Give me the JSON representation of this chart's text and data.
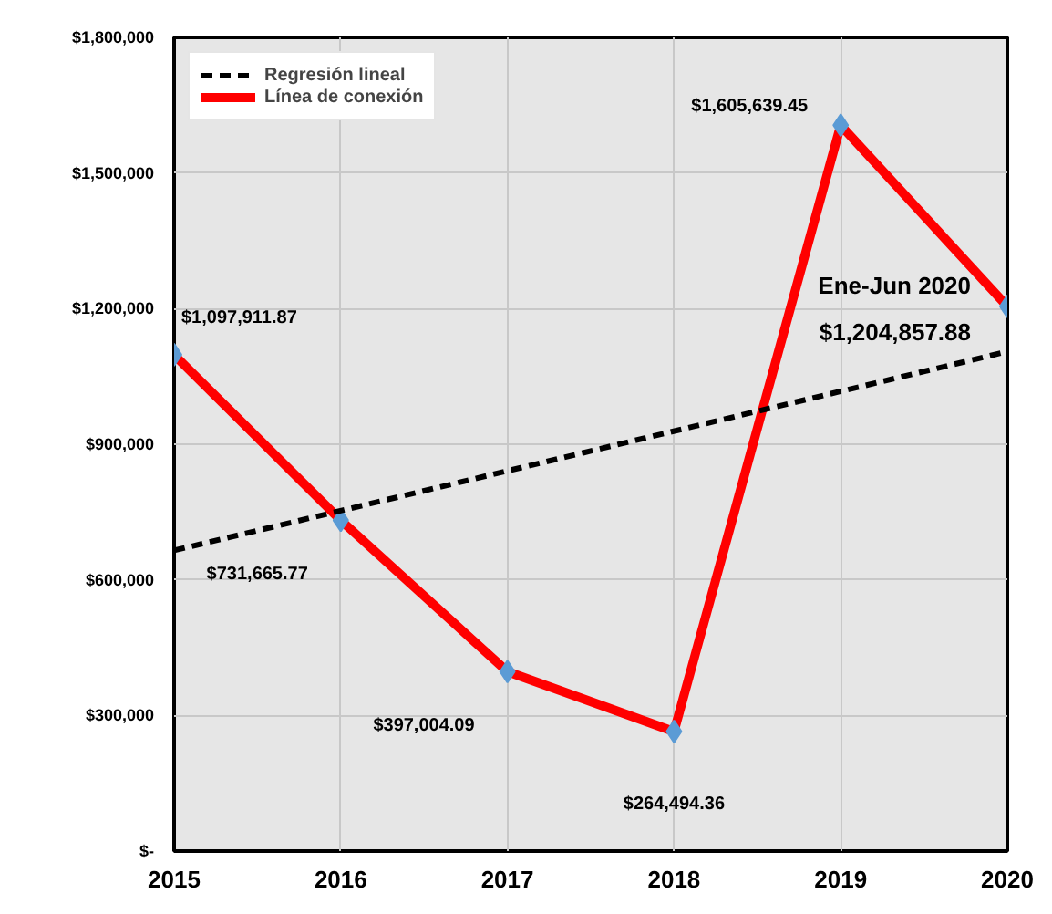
{
  "chart_data": {
    "type": "line",
    "x": [
      2015,
      2016,
      2017,
      2018,
      2019,
      2020
    ],
    "series": [
      {
        "name": "Línea de conexión",
        "color": "#ff0000",
        "values": [
          1097911.87,
          731665.77,
          397004.09,
          264494.36,
          1605639.45,
          1204857.88
        ],
        "marker": "none",
        "line_style": "solid"
      },
      {
        "type": "scatter",
        "color": "#5b9bd5",
        "marker": "diamond",
        "values": [
          1097911.87,
          731665.77,
          397004.09,
          264494.36,
          1605639.45,
          1204857.88
        ],
        "value_labels": [
          "$1,097,911.87",
          "$731,665.77",
          "$397,004.09",
          "$264,494.36",
          "$1,605,639.45",
          "$1,204,857.88"
        ]
      },
      {
        "name": "Regresión lineal",
        "color": "#000000",
        "x": [
          2015,
          2020
        ],
        "values": [
          665000,
          1105000
        ],
        "marker": "none",
        "line_style": "dashed"
      }
    ],
    "annotations": [
      {
        "text": "Ene-Jun 2020",
        "x": 2020,
        "y": 1204857.88
      }
    ],
    "xlim": [
      2015,
      2020
    ],
    "xticks": [
      2015,
      2016,
      2017,
      2018,
      2019,
      2020
    ],
    "ylim": [
      0,
      1800000
    ],
    "yticks": [
      {
        "value": 0,
        "label": "$-"
      },
      {
        "value": 300000,
        "label": "$300,000"
      },
      {
        "value": 600000,
        "label": "$600,000"
      },
      {
        "value": 900000,
        "label": "$900,000"
      },
      {
        "value": 1200000,
        "label": "$1,200,000"
      },
      {
        "value": 1500000,
        "label": "$1,500,000"
      },
      {
        "value": 1800000,
        "label": "$1,800,000"
      }
    ],
    "grid": true,
    "legend": "top left"
  }
}
